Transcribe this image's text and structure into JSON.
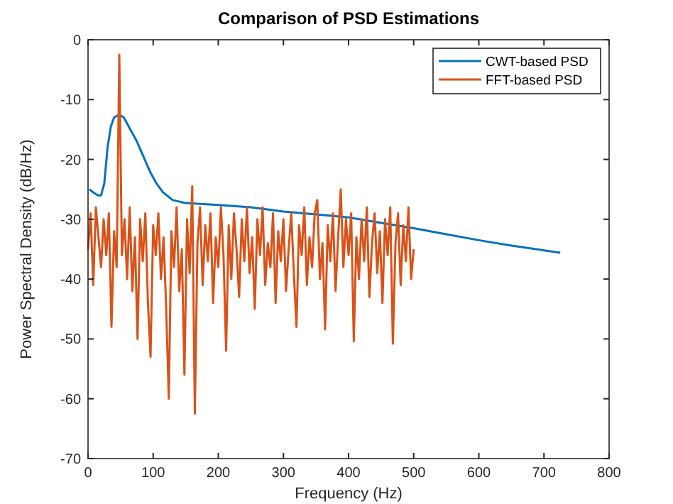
{
  "chart_data": {
    "type": "line",
    "title": "Comparison of PSD Estimations",
    "xlabel": "Frequency (Hz)",
    "ylabel": "Power Spectral Density (dB/Hz)",
    "xlim": [
      0,
      800
    ],
    "xticks": [
      0,
      100,
      200,
      300,
      400,
      500,
      600,
      700,
      800
    ],
    "ylim": [
      -70,
      0
    ],
    "yticks": [
      -70,
      -60,
      -50,
      -40,
      -30,
      -20,
      -10,
      0
    ],
    "grid": false,
    "legend": "top right",
    "marker": "none",
    "line_style": "solid",
    "series": [
      {
        "name": "CWT-based PSD",
        "color": "#0072bd",
        "x": [
          2,
          8,
          15,
          20,
          25,
          30,
          35,
          40,
          48,
          55,
          65,
          75,
          85,
          95,
          105,
          115,
          130,
          150,
          200,
          250,
          300,
          350,
          400,
          450,
          500,
          550,
          600,
          650,
          700,
          725
        ],
        "values": [
          -25,
          -25.5,
          -26,
          -26,
          -24,
          -18,
          -14.5,
          -13,
          -12.5,
          -13,
          -15,
          -17,
          -19.5,
          -22,
          -24,
          -25.5,
          -26.8,
          -27.3,
          -27.6,
          -28,
          -28.7,
          -29.2,
          -29.7,
          -30.6,
          -31.5,
          -32.5,
          -33.5,
          -34.4,
          -35.2,
          -35.6
        ]
      },
      {
        "name": "FFT-based PSD",
        "color": "#d95319",
        "x": [
          0,
          4,
          8,
          12,
          16,
          20,
          24,
          28,
          32,
          36,
          40,
          44,
          48,
          52,
          56,
          60,
          64,
          68,
          72,
          76,
          80,
          84,
          88,
          92,
          96,
          100,
          104,
          108,
          112,
          116,
          120,
          124,
          128,
          132,
          136,
          140,
          144,
          148,
          152,
          156,
          160,
          164,
          168,
          172,
          176,
          180,
          184,
          188,
          192,
          196,
          200,
          204,
          208,
          212,
          216,
          220,
          224,
          228,
          232,
          236,
          240,
          244,
          248,
          252,
          256,
          260,
          264,
          268,
          272,
          276,
          280,
          284,
          288,
          292,
          296,
          300,
          304,
          308,
          312,
          316,
          320,
          324,
          328,
          332,
          336,
          340,
          344,
          348,
          352,
          356,
          360,
          364,
          368,
          372,
          376,
          380,
          384,
          388,
          392,
          396,
          400,
          404,
          408,
          412,
          416,
          420,
          424,
          428,
          432,
          436,
          440,
          444,
          448,
          452,
          456,
          460,
          464,
          468,
          472,
          476,
          480,
          484,
          488,
          492,
          496,
          500
        ],
        "values": [
          -35,
          -29,
          -41,
          -28,
          -33,
          -38,
          -30,
          -36,
          -29,
          -48,
          -32,
          -38,
          -2.5,
          -36,
          -30,
          -40,
          -28,
          -42,
          -33,
          -50,
          -30,
          -37,
          -29,
          -44,
          -53,
          -31,
          -36,
          -29,
          -40,
          -33,
          -45,
          -60,
          -32,
          -38,
          -28,
          -42,
          -35,
          -56,
          -30,
          -39,
          -24.5,
          -62.5,
          -34,
          -28,
          -41,
          -31,
          -37,
          -29,
          -44,
          -33,
          -38,
          -28,
          -36,
          -52,
          -31,
          -40,
          -29,
          -35,
          -43,
          -30,
          -37,
          -28,
          -39,
          -33,
          -45,
          -30,
          -36,
          -28,
          -41,
          -34,
          -38,
          -29,
          -44,
          -32,
          -37,
          -30,
          -42,
          -35,
          -29,
          -39,
          -48,
          -31,
          -36,
          -28,
          -41,
          -33,
          -38,
          -29,
          -26.8,
          -40,
          -34,
          -48.4,
          -31,
          -37,
          -29,
          -42,
          -33,
          -25,
          -38,
          -30,
          -36,
          -29,
          -50.4,
          -33,
          -40,
          -30,
          -37,
          -28,
          -43,
          -34,
          -29,
          -39,
          -32,
          -44,
          -30,
          -36,
          -28,
          -50.8,
          -34,
          -29,
          -41,
          -31,
          -37,
          -28,
          -40,
          -35
        ]
      }
    ]
  }
}
